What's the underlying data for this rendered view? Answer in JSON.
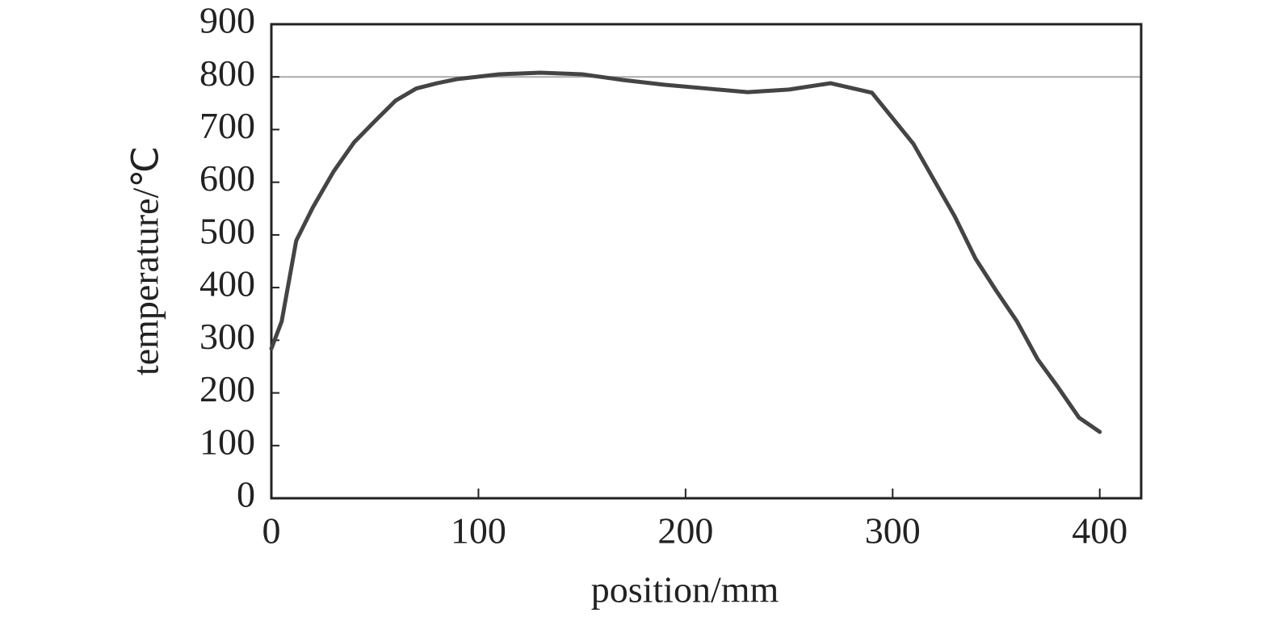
{
  "chart_data": {
    "type": "line",
    "x_label": "position/mm",
    "y_label": "temperature/℃",
    "x": [
      0,
      5,
      12,
      20,
      30,
      40,
      50,
      60,
      70,
      80,
      90,
      110,
      130,
      150,
      170,
      190,
      210,
      230,
      250,
      270,
      290,
      310,
      330,
      340,
      350,
      360,
      370,
      380,
      390,
      400
    ],
    "series": [
      {
        "color": "#444444",
        "values": [
          284,
          336,
          489,
          552,
          620,
          676,
          716,
          755,
          778,
          788,
          796,
          805,
          808,
          805,
          794,
          785,
          778,
          771,
          776,
          788,
          770,
          673,
          535,
          455,
          394,
          336,
          264,
          210,
          153,
          126
        ]
      }
    ],
    "reference_line": 800,
    "reference_color": "#aaaaaa",
    "xlim": [
      0,
      420
    ],
    "xticks": [
      0,
      100,
      200,
      300,
      400
    ],
    "ylim": [
      0,
      900
    ],
    "yticks": [
      0,
      100,
      200,
      300,
      400,
      500,
      600,
      700,
      800,
      900
    ]
  }
}
